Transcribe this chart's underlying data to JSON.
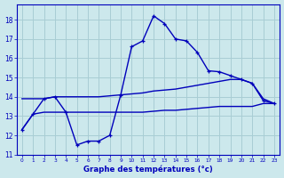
{
  "xlabel": "Graphe des températures (°c)",
  "bg_color": "#cce8ec",
  "grid_color": "#a8cdd4",
  "line_color": "#0000bb",
  "xlim": [
    -0.5,
    23.5
  ],
  "ylim": [
    11,
    18.8
  ],
  "yticks": [
    11,
    12,
    13,
    14,
    15,
    16,
    17,
    18
  ],
  "xticks": [
    0,
    1,
    2,
    3,
    4,
    5,
    6,
    7,
    8,
    9,
    10,
    11,
    12,
    13,
    14,
    15,
    16,
    17,
    18,
    19,
    20,
    21,
    22,
    23
  ],
  "actual_x": [
    0,
    1,
    2,
    3,
    4,
    5,
    6,
    7,
    8,
    9,
    10,
    11,
    12,
    13,
    14,
    15,
    16,
    17,
    18,
    19,
    20,
    21,
    22,
    23
  ],
  "actual_y": [
    12.3,
    13.1,
    13.9,
    14.0,
    13.2,
    11.5,
    11.7,
    11.7,
    12.0,
    14.1,
    16.6,
    16.9,
    18.2,
    17.8,
    17.0,
    16.9,
    16.3,
    15.35,
    15.3,
    15.1,
    14.9,
    14.7,
    13.8,
    13.65
  ],
  "max_x": [
    0,
    1,
    2,
    3,
    4,
    5,
    6,
    7,
    8,
    9,
    10,
    11,
    12,
    13,
    14,
    15,
    16,
    17,
    18,
    19,
    20,
    21,
    22,
    23
  ],
  "max_y": [
    13.9,
    13.9,
    13.9,
    14.0,
    14.0,
    14.0,
    14.0,
    14.0,
    14.05,
    14.1,
    14.15,
    14.2,
    14.3,
    14.35,
    14.4,
    14.5,
    14.6,
    14.7,
    14.8,
    14.9,
    14.9,
    14.7,
    13.9,
    13.65
  ],
  "min_x": [
    0,
    1,
    2,
    3,
    4,
    5,
    6,
    7,
    8,
    9,
    10,
    11,
    12,
    13,
    14,
    15,
    16,
    17,
    18,
    19,
    20,
    21,
    22,
    23
  ],
  "min_y": [
    12.3,
    13.1,
    13.2,
    13.2,
    13.2,
    13.2,
    13.2,
    13.2,
    13.2,
    13.2,
    13.2,
    13.2,
    13.25,
    13.3,
    13.3,
    13.35,
    13.4,
    13.45,
    13.5,
    13.5,
    13.5,
    13.5,
    13.65,
    13.65
  ]
}
